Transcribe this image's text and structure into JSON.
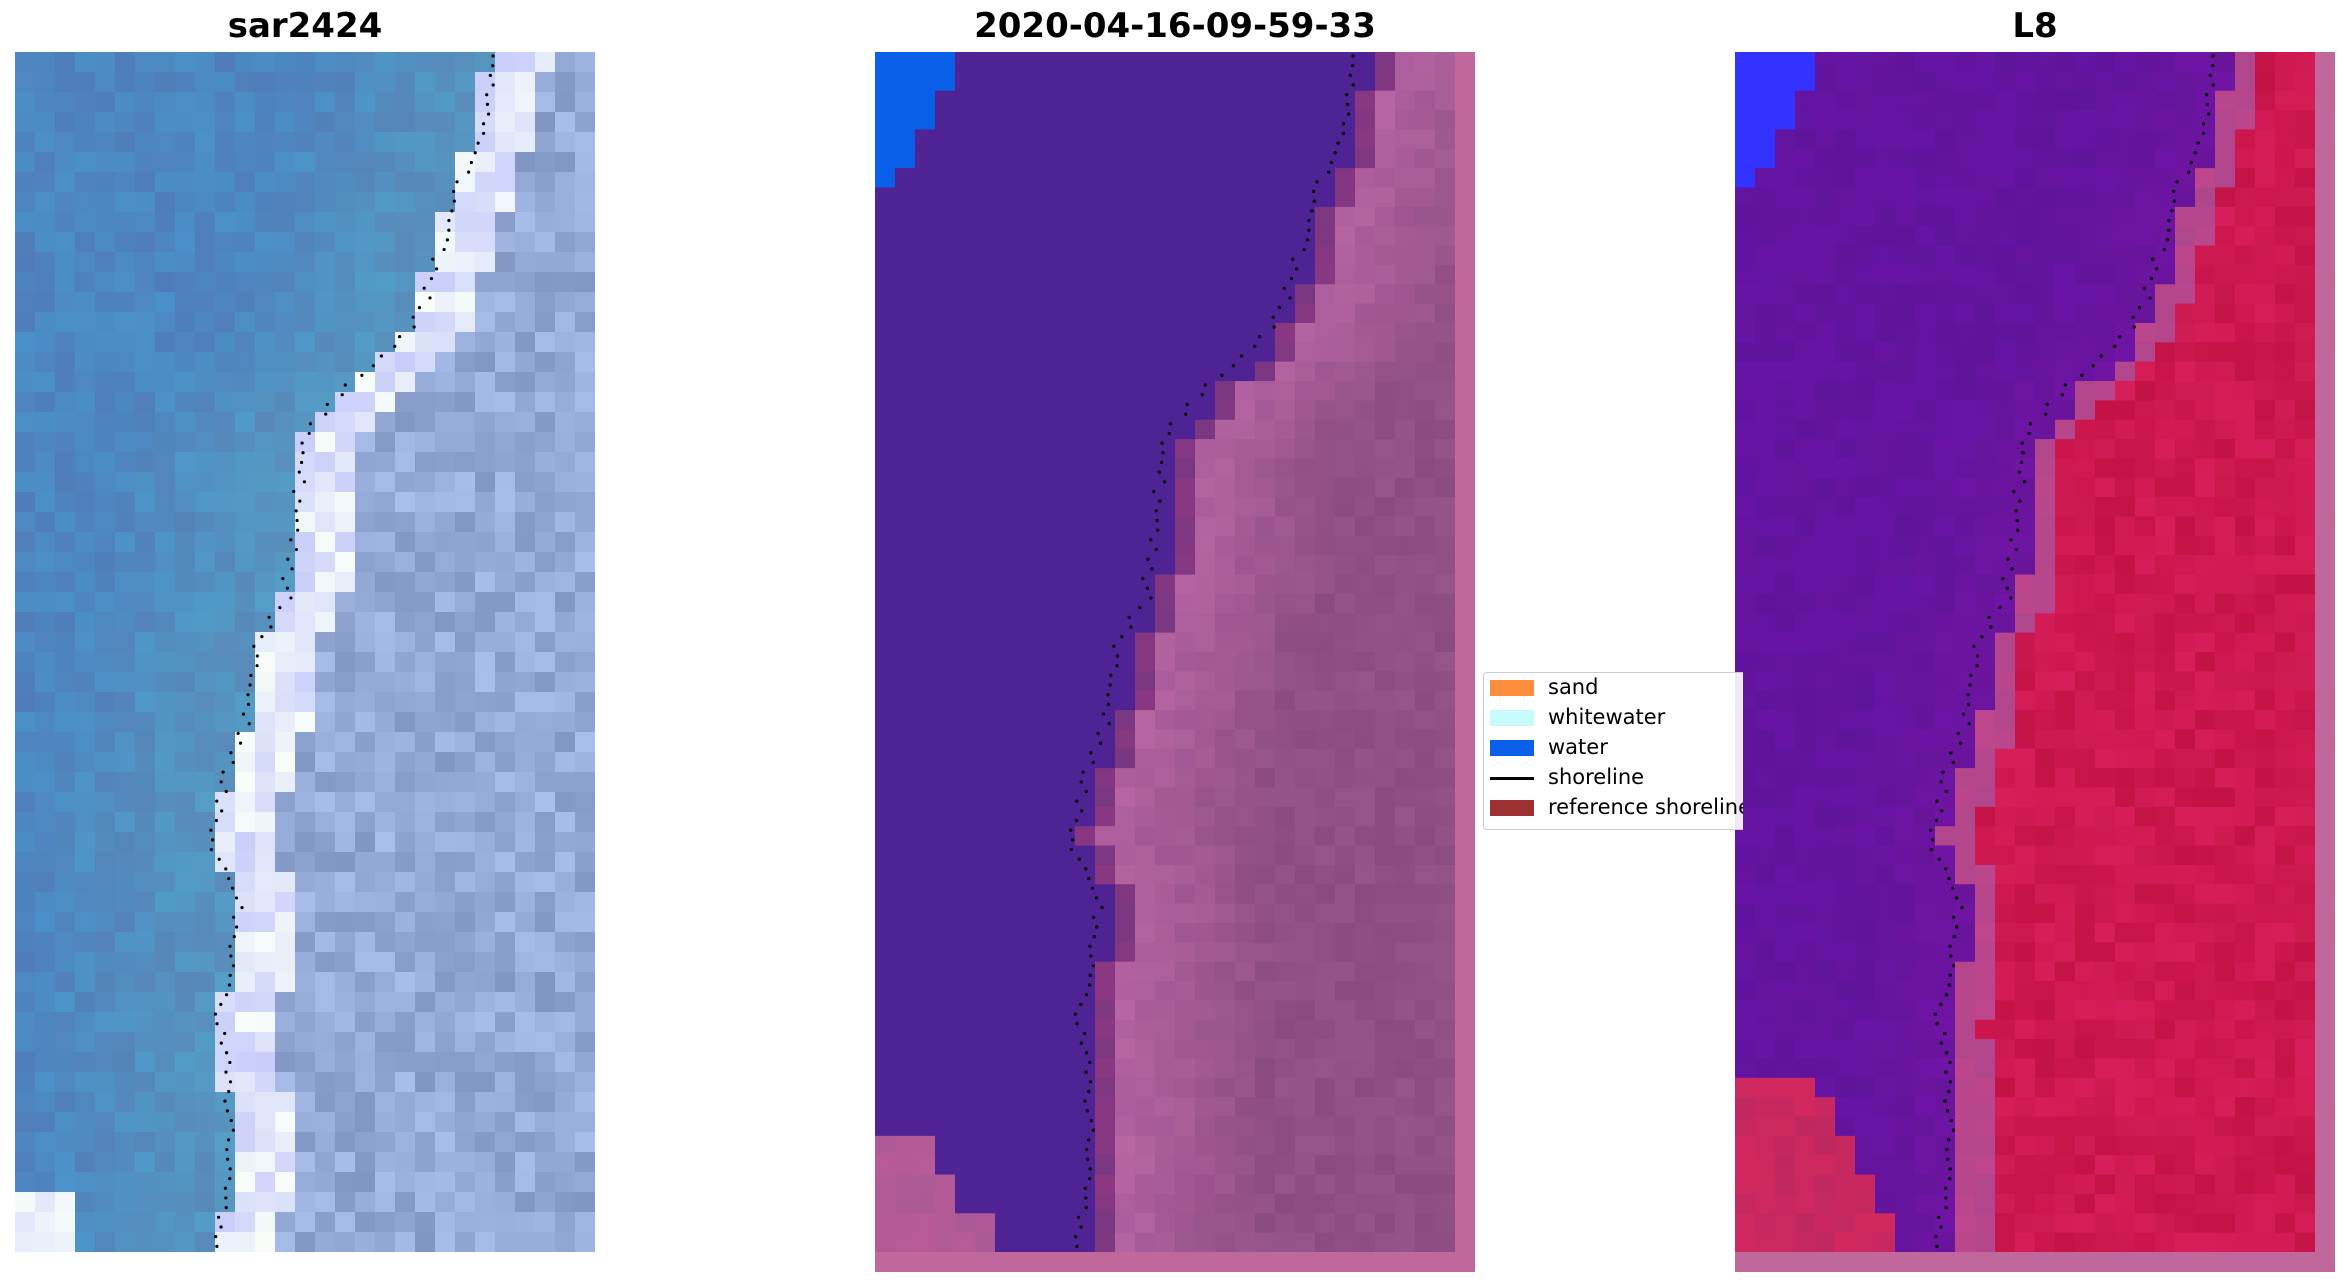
{
  "panels": [
    {
      "title": "sar2424",
      "palette": "rgb"
    },
    {
      "title": "2020-04-16-09-59-33",
      "palette": "classified"
    },
    {
      "title": "L8",
      "palette": "index"
    }
  ],
  "legend": {
    "items": [
      {
        "label": "sand",
        "color": "#ff8c3a",
        "kind": "patch"
      },
      {
        "label": "whitewater",
        "color": "#c6fbfb",
        "kind": "patch"
      },
      {
        "label": "water",
        "color": "#0a5fe8",
        "kind": "patch"
      },
      {
        "label": "shoreline",
        "color": "#000000",
        "kind": "line"
      },
      {
        "label": "reference shoreline",
        "color": "#9b3030",
        "kind": "patch"
      }
    ]
  },
  "colors": {
    "water_class": "#4f2394",
    "land_class": "#9a4f8e",
    "water_pixel": "#0a5fe8",
    "border": "#c0679b",
    "index_water": "#6a14a0",
    "index_land": "#c4154a",
    "index_water_pixel": "#3333ff",
    "shoreline_dots": "#000000"
  }
}
